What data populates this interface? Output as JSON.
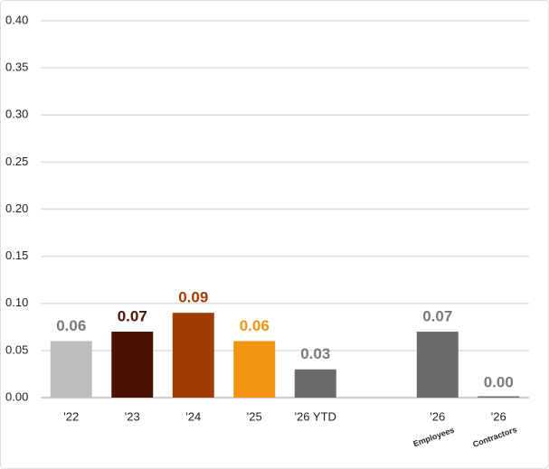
{
  "chart_data": {
    "type": "bar",
    "categories": [
      "'22",
      "'23",
      "'24",
      "'25",
      "'26 YTD",
      null,
      "'26",
      "'26"
    ],
    "category_notes": [
      null,
      null,
      null,
      null,
      null,
      null,
      "Employees",
      "Contractors"
    ],
    "values": [
      0.06,
      0.07,
      0.09,
      0.06,
      0.03,
      null,
      0.07,
      0
    ],
    "value_labels": [
      "0.06",
      "0.07",
      "0.09",
      "0.06",
      "0.03",
      null,
      "0.07",
      "0.00"
    ],
    "colors": [
      "#bdbdbd",
      "#4a1303",
      "#a13c02",
      "#f29412",
      "#6b6b6b",
      null,
      "#6b6b6b",
      "#6b6b6b"
    ],
    "label_colors": [
      "#7a7a7a",
      "#4a1303",
      "#a13c02",
      "#f29412",
      "#7a7a7a",
      null,
      "#7a7a7a",
      "#7a7a7a"
    ],
    "ylim": [
      0,
      0.4
    ],
    "yticks": [
      {
        "value": 0,
        "label": "0.00"
      },
      {
        "value": 0.05,
        "label": "0.05"
      },
      {
        "value": 0.1,
        "label": "0.10"
      },
      {
        "value": 0.15,
        "label": "0.15"
      },
      {
        "value": 0.2,
        "label": "0.20"
      },
      {
        "value": 0.25,
        "label": "0.25"
      },
      {
        "value": 0.3,
        "label": "0.30"
      },
      {
        "value": 0.35,
        "label": "0.35"
      },
      {
        "value": 0.4,
        "label": "0.40"
      }
    ],
    "grid": true
  }
}
